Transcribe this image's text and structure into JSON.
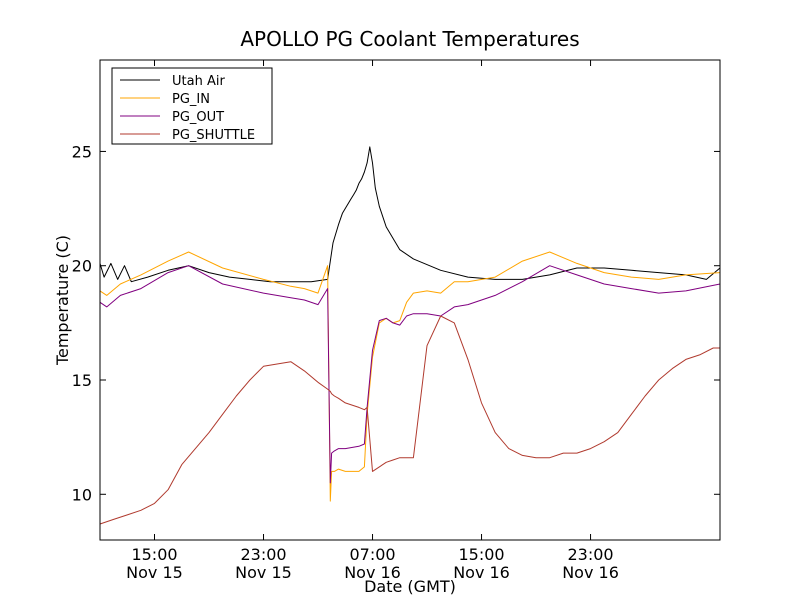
{
  "chart_data": {
    "type": "line",
    "title": "APOLLO PG Coolant Temperatures",
    "xlabel": "Date (GMT)",
    "ylabel": "Temperature (C)",
    "xlim": [
      11,
      56.5
    ],
    "ylim": [
      8,
      29
    ],
    "x_unit": "hours since Nov 15 00:00 GMT",
    "grid": false,
    "legend_position": "top-left",
    "y_ticks": [
      {
        "value": 10,
        "label": "10"
      },
      {
        "value": 15,
        "label": "15"
      },
      {
        "value": 20,
        "label": "20"
      },
      {
        "value": 25,
        "label": "25"
      }
    ],
    "x_ticks": [
      {
        "value": 15,
        "time": "15:00",
        "date": "Nov 15"
      },
      {
        "value": 23,
        "time": "23:00",
        "date": "Nov 15"
      },
      {
        "value": 31,
        "time": "07:00",
        "date": "Nov 16"
      },
      {
        "value": 39,
        "time": "15:00",
        "date": "Nov 16"
      },
      {
        "value": 47,
        "time": "23:00",
        "date": "Nov 16"
      }
    ],
    "series": [
      {
        "name": "Utah Air",
        "color": "#000000",
        "x": [
          11,
          11.3,
          11.8,
          12.3,
          12.8,
          13.3,
          14.5,
          16,
          17.5,
          19,
          20.5,
          22,
          23.5,
          25,
          26.5,
          27.7,
          28.1,
          28.5,
          28.8,
          29.1,
          29.4,
          29.6,
          29.8,
          30.0,
          30.2,
          30.4,
          30.6,
          30.8,
          31.0,
          31.2,
          31.5,
          32,
          33,
          34,
          36,
          38,
          40,
          42,
          44,
          46,
          48,
          50,
          52,
          54,
          55.5,
          56.5
        ],
        "y": [
          20.1,
          19.5,
          20.1,
          19.4,
          20.0,
          19.3,
          19.5,
          19.8,
          20.0,
          19.7,
          19.5,
          19.4,
          19.3,
          19.3,
          19.3,
          19.4,
          21.0,
          21.8,
          22.3,
          22.6,
          22.9,
          23.1,
          23.3,
          23.6,
          23.8,
          24.1,
          24.5,
          25.2,
          24.5,
          23.4,
          22.6,
          21.7,
          20.7,
          20.3,
          19.8,
          19.5,
          19.4,
          19.4,
          19.6,
          19.9,
          19.9,
          19.8,
          19.7,
          19.6,
          19.4,
          19.9
        ]
      },
      {
        "name": "PG_IN",
        "color": "#ffa500",
        "x": [
          11,
          11.5,
          12.5,
          14,
          16,
          17.5,
          20,
          23,
          25,
          26,
          27,
          27.7,
          27.9,
          28.0,
          28.2,
          28.5,
          29,
          30,
          30.4,
          30.6,
          31,
          31.5,
          32,
          32.5,
          33,
          33.5,
          34,
          35,
          36,
          37,
          38,
          40,
          42,
          44,
          46,
          48,
          50,
          52,
          54,
          56.5
        ],
        "y": [
          18.9,
          18.7,
          19.2,
          19.6,
          20.2,
          20.6,
          19.9,
          19.4,
          19.1,
          19.0,
          18.8,
          20.0,
          9.7,
          11.0,
          11.0,
          11.1,
          11.0,
          11.0,
          11.2,
          13.5,
          16.0,
          17.5,
          17.7,
          17.5,
          17.6,
          18.4,
          18.8,
          18.9,
          18.8,
          19.3,
          19.3,
          19.5,
          20.2,
          20.6,
          20.1,
          19.7,
          19.5,
          19.4,
          19.6,
          19.7
        ]
      },
      {
        "name": "PG_OUT",
        "color": "#800080",
        "x": [
          11,
          11.5,
          12.5,
          14,
          16,
          17.5,
          20,
          23,
          25,
          26,
          27,
          27.7,
          27.9,
          28.0,
          28.2,
          28.5,
          29,
          30,
          30.4,
          30.6,
          31,
          31.5,
          32,
          32.5,
          33,
          33.5,
          34,
          35,
          36,
          37,
          38,
          40,
          42,
          44,
          46,
          48,
          50,
          52,
          54,
          56.5
        ],
        "y": [
          18.4,
          18.2,
          18.7,
          19.0,
          19.7,
          20.0,
          19.2,
          18.8,
          18.6,
          18.5,
          18.3,
          19.0,
          10.5,
          11.8,
          11.9,
          12.0,
          12.0,
          12.1,
          12.2,
          13.8,
          16.3,
          17.6,
          17.7,
          17.5,
          17.4,
          17.8,
          17.9,
          17.9,
          17.8,
          18.2,
          18.3,
          18.7,
          19.3,
          20.0,
          19.6,
          19.2,
          19.0,
          18.8,
          18.9,
          19.2
        ]
      },
      {
        "name": "PG_SHUTTLE",
        "color": "#b03a2e",
        "x": [
          11,
          12,
          13,
          14,
          15,
          16,
          17,
          18,
          19,
          20,
          21,
          22,
          22.5,
          23,
          24,
          25,
          26,
          27,
          27.7,
          27.9,
          28.0,
          28.2,
          28.5,
          29,
          30,
          30.4,
          30.6,
          31,
          31.5,
          32,
          32.5,
          33,
          34,
          35,
          36,
          37,
          38,
          39,
          40,
          41,
          42,
          43,
          44,
          45,
          46,
          47,
          48,
          49,
          50,
          51,
          52,
          53,
          54,
          55,
          56,
          56.5
        ],
        "y": [
          8.7,
          8.9,
          9.1,
          9.3,
          9.6,
          10.2,
          11.3,
          12.0,
          12.7,
          13.5,
          14.3,
          15.0,
          15.3,
          15.6,
          15.7,
          15.8,
          15.4,
          14.9,
          14.6,
          14.5,
          14.4,
          14.3,
          14.2,
          14.0,
          13.8,
          13.7,
          13.8,
          11.0,
          11.2,
          11.4,
          11.5,
          11.6,
          11.6,
          16.5,
          17.8,
          17.5,
          15.9,
          14.0,
          12.7,
          12.0,
          11.7,
          11.6,
          11.6,
          11.8,
          11.8,
          12.0,
          12.3,
          12.7,
          13.5,
          14.3,
          15.0,
          15.5,
          15.9,
          16.1,
          16.4,
          16.4
        ]
      }
    ]
  }
}
